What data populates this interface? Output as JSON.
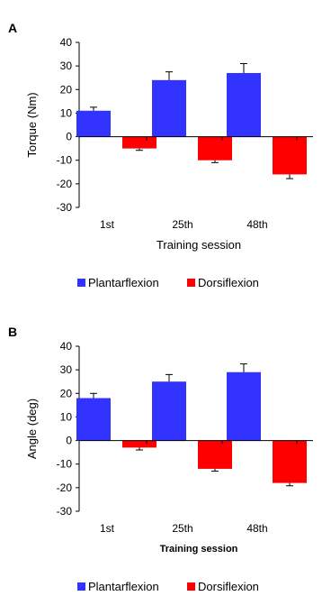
{
  "chart_data": [
    {
      "panel_label": "A",
      "type": "bar",
      "categories": [
        "1st",
        "25th",
        "48th"
      ],
      "series": [
        {
          "name": "Plantarflexion",
          "values": [
            11,
            24,
            27
          ],
          "errors": [
            1.5,
            3.5,
            4.0
          ]
        },
        {
          "name": "Dorsiflexion",
          "values": [
            -5,
            -10,
            -16
          ],
          "errors": [
            0.8,
            1.0,
            1.8
          ]
        }
      ],
      "title": "",
      "xlabel": "Training session",
      "xlabel_bold": false,
      "ylabel": "Torque (Nm)",
      "ylim": [
        -30,
        40
      ],
      "yticks": [
        40,
        30,
        20,
        10,
        0,
        -10,
        -20,
        -30
      ],
      "grid": false,
      "legend_position": "bottom-center",
      "colors": {
        "Plantarflexion": "#3333ff",
        "Dorsiflexion": "#ff0000"
      }
    },
    {
      "panel_label": "B",
      "type": "bar",
      "categories": [
        "1st",
        "25th",
        "48th"
      ],
      "series": [
        {
          "name": "Plantarflexion",
          "values": [
            18,
            25,
            29
          ],
          "errors": [
            2.0,
            3.0,
            3.5
          ]
        },
        {
          "name": "Dorsiflexion",
          "values": [
            -3,
            -12,
            -18
          ],
          "errors": [
            1.0,
            1.0,
            1.2
          ]
        }
      ],
      "title": "",
      "xlabel": "Training session",
      "xlabel_bold": true,
      "ylabel": "Angle (deg)",
      "ylim": [
        -30,
        40
      ],
      "yticks": [
        40,
        30,
        20,
        10,
        0,
        -10,
        -20,
        -30
      ],
      "grid": false,
      "legend_position": "bottom-center",
      "colors": {
        "Plantarflexion": "#3333ff",
        "Dorsiflexion": "#ff0000"
      }
    }
  ]
}
